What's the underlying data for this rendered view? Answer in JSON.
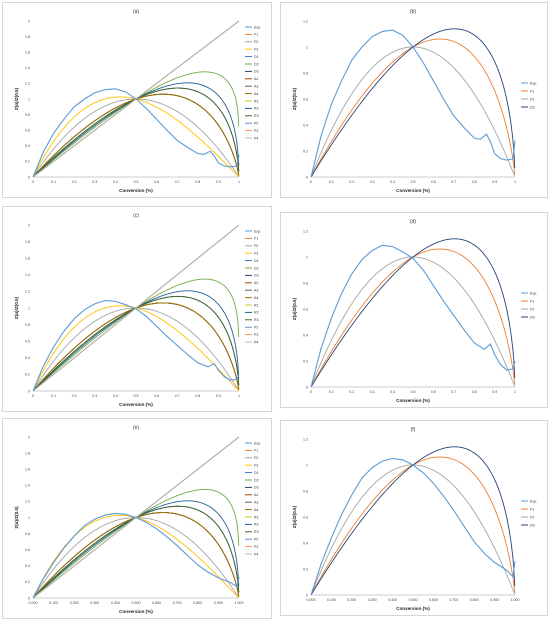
{
  "chart_data": [
    {
      "type": "line",
      "title": "(a)",
      "xlabel": "Conversion (%)",
      "ylabel": "Z(α)/Z(0.5)",
      "xlim": [
        0,
        1
      ],
      "ylim": [
        0,
        2
      ],
      "xticks": [
        "0",
        "0.1",
        "0.2",
        "0.3",
        "0.4",
        "0.5",
        "0.6",
        "0.7",
        "0.8",
        "0.9",
        "1"
      ],
      "yticks": [
        "0",
        "0.2",
        "0.4",
        "0.6",
        "0.8",
        "1",
        "1.2",
        "1.4",
        "1.6",
        "1.8",
        "2"
      ],
      "legend_position": "right",
      "series": [
        {
          "name": "Exp.",
          "color": "#5b9bd5",
          "model": "exp1"
        },
        {
          "name": "F1",
          "color": "#ed7d31",
          "model": "F1"
        },
        {
          "name": "F2",
          "color": "#a5a5a5",
          "model": "F2"
        },
        {
          "name": "F3",
          "color": "#ffc000",
          "model": "F3"
        },
        {
          "name": "D1",
          "color": "#4472c4",
          "model": "D1"
        },
        {
          "name": "D2",
          "color": "#70ad47",
          "model": "D2"
        },
        {
          "name": "D3",
          "color": "#264478",
          "model": "D3"
        },
        {
          "name": "A2",
          "color": "#9e480e",
          "model": "A2"
        },
        {
          "name": "A3",
          "color": "#636363",
          "model": "A3"
        },
        {
          "name": "A4",
          "color": "#997300",
          "model": "A4"
        },
        {
          "name": "R1",
          "color": "#d4c91e",
          "model": "R1"
        },
        {
          "name": "R2",
          "color": "#255e91",
          "model": "R2"
        },
        {
          "name": "R3",
          "color": "#43682b",
          "model": "R3"
        },
        {
          "name": "P2",
          "color": "#698ed0",
          "model": "P2"
        },
        {
          "name": "P3",
          "color": "#f1975a",
          "model": "P3"
        },
        {
          "name": "P4",
          "color": "#b7b7b7",
          "model": "P4"
        }
      ]
    },
    {
      "type": "line",
      "title": "(b)",
      "xlabel": "Conversion (%)",
      "ylabel": "Z(α)/Z(0.5)",
      "xlim": [
        0,
        1
      ],
      "ylim": [
        0,
        1.2
      ],
      "xticks": [
        "0",
        "0.1",
        "0.2",
        "0.3",
        "0.4",
        "0.5",
        "0.6",
        "0.7",
        "0.8",
        "0.9",
        "1"
      ],
      "yticks": [
        "0",
        "0.2",
        "0.4",
        "0.6",
        "0.8",
        "1",
        "1.2"
      ],
      "legend_position": "right",
      "series": [
        {
          "name": "Exp.",
          "color": "#5b9bd5",
          "model": "exp1"
        },
        {
          "name": "F1",
          "color": "#ed7d31",
          "model": "F1"
        },
        {
          "name": "F2",
          "color": "#a5a5a5",
          "model": "F2"
        },
        {
          "name": "D3",
          "color": "#264478",
          "model": "D3"
        }
      ]
    },
    {
      "type": "line",
      "title": "(c)",
      "xlabel": "Conversion (%)",
      "ylabel": "Z(α)/Z(0.5)",
      "xlim": [
        0,
        1
      ],
      "ylim": [
        0,
        2
      ],
      "xticks": [
        "0",
        "0.1",
        "0.2",
        "0.3",
        "0.4",
        "0.5",
        "0.6",
        "0.7",
        "0.8",
        "0.9",
        "1"
      ],
      "yticks": [
        "0",
        "0.2",
        "0.4",
        "0.6",
        "0.8",
        "1",
        "1.2",
        "1.4",
        "1.6",
        "1.8",
        "2"
      ],
      "legend_position": "right",
      "series": [
        {
          "name": "Exp.",
          "color": "#5b9bd5",
          "model": "exp2"
        },
        {
          "name": "F1",
          "color": "#ed7d31",
          "model": "F1"
        },
        {
          "name": "F2",
          "color": "#a5a5a5",
          "model": "F2"
        },
        {
          "name": "F3",
          "color": "#ffc000",
          "model": "F3"
        },
        {
          "name": "D1",
          "color": "#4472c4",
          "model": "D1"
        },
        {
          "name": "D2",
          "color": "#70ad47",
          "model": "D2"
        },
        {
          "name": "D3",
          "color": "#264478",
          "model": "D3"
        },
        {
          "name": "A2",
          "color": "#9e480e",
          "model": "A2"
        },
        {
          "name": "A3",
          "color": "#636363",
          "model": "A3"
        },
        {
          "name": "A4",
          "color": "#997300",
          "model": "A4"
        },
        {
          "name": "R1",
          "color": "#d4c91e",
          "model": "R1"
        },
        {
          "name": "R2",
          "color": "#255e91",
          "model": "R2"
        },
        {
          "name": "R3",
          "color": "#43682b",
          "model": "R3"
        },
        {
          "name": "P2",
          "color": "#698ed0",
          "model": "P2"
        },
        {
          "name": "P3",
          "color": "#f1975a",
          "model": "P3"
        },
        {
          "name": "P4",
          "color": "#b7b7b7",
          "model": "P4"
        }
      ]
    },
    {
      "type": "line",
      "title": "(d)",
      "xlabel": "Conversion (%)",
      "ylabel": "Z(α)/Z(0.5)",
      "xlim": [
        0,
        1
      ],
      "ylim": [
        0,
        1.2
      ],
      "xticks": [
        "0",
        "0.1",
        "0.2",
        "0.3",
        "0.4",
        "0.5",
        "0.6",
        "0.7",
        "0.8",
        "0.9",
        "1"
      ],
      "yticks": [
        "0",
        "0.2",
        "0.4",
        "0.6",
        "0.8",
        "1",
        "1.2"
      ],
      "legend_position": "right",
      "series": [
        {
          "name": "Exp.",
          "color": "#5b9bd5",
          "model": "exp2"
        },
        {
          "name": "F1",
          "color": "#ed7d31",
          "model": "F1"
        },
        {
          "name": "F2",
          "color": "#a5a5a5",
          "model": "F2"
        },
        {
          "name": "D3",
          "color": "#264478",
          "model": "D3"
        }
      ]
    },
    {
      "type": "line",
      "title": "(e)",
      "xlabel": "Conversion (%)",
      "ylabel": "Z(α)/Z(0.5)",
      "xlim": [
        0,
        1
      ],
      "ylim": [
        0,
        2
      ],
      "xticks": [
        "0.000",
        "0.100",
        "0.200",
        "0.300",
        "0.400",
        "0.500",
        "0.600",
        "0.700",
        "0.800",
        "0.900",
        "1.000"
      ],
      "yticks": [
        "0",
        "0.2",
        "0.4",
        "0.6",
        "0.8",
        "1",
        "1.2",
        "1.4",
        "1.6",
        "1.8",
        "2"
      ],
      "legend_position": "right",
      "series": [
        {
          "name": "Exp.",
          "color": "#5b9bd5",
          "model": "exp3"
        },
        {
          "name": "F1",
          "color": "#ed7d31",
          "model": "F1"
        },
        {
          "name": "F2",
          "color": "#a5a5a5",
          "model": "F2"
        },
        {
          "name": "F3",
          "color": "#ffc000",
          "model": "F3"
        },
        {
          "name": "D1",
          "color": "#4472c4",
          "model": "D1"
        },
        {
          "name": "D2",
          "color": "#70ad47",
          "model": "D2"
        },
        {
          "name": "D3",
          "color": "#264478",
          "model": "D3"
        },
        {
          "name": "A2",
          "color": "#9e480e",
          "model": "A2"
        },
        {
          "name": "A3",
          "color": "#636363",
          "model": "A3"
        },
        {
          "name": "A4",
          "color": "#997300",
          "model": "A4"
        },
        {
          "name": "R1",
          "color": "#d4c91e",
          "model": "R1"
        },
        {
          "name": "R2",
          "color": "#255e91",
          "model": "R2"
        },
        {
          "name": "R3",
          "color": "#43682b",
          "model": "R3"
        },
        {
          "name": "P2",
          "color": "#698ed0",
          "model": "P2"
        },
        {
          "name": "P3",
          "color": "#f1975a",
          "model": "P3"
        },
        {
          "name": "P4",
          "color": "#b7b7b7",
          "model": "P4"
        }
      ]
    },
    {
      "type": "line",
      "title": "(f)",
      "xlabel": "Conversion (%)",
      "ylabel": "Z(α)/Z(0.5)",
      "xlim": [
        0,
        1
      ],
      "ylim": [
        0,
        1.2
      ],
      "xticks": [
        "0.000",
        "0.100",
        "0.200",
        "0.300",
        "0.400",
        "0.500",
        "0.600",
        "0.700",
        "0.800",
        "0.900",
        "1.000"
      ],
      "yticks": [
        "0",
        "0.2",
        "0.4",
        "0.6",
        "0.8",
        "1",
        "1.2"
      ],
      "legend_position": "right",
      "series": [
        {
          "name": "Exp.",
          "color": "#5b9bd5",
          "model": "exp3"
        },
        {
          "name": "F1",
          "color": "#ed7d31",
          "model": "F1"
        },
        {
          "name": "F2",
          "color": "#a5a5a5",
          "model": "F2"
        },
        {
          "name": "D3",
          "color": "#264478",
          "model": "D3"
        }
      ]
    }
  ],
  "experimental_curves": {
    "exp1": {
      "x": [
        0,
        0.05,
        0.1,
        0.15,
        0.2,
        0.25,
        0.3,
        0.35,
        0.4,
        0.45,
        0.5,
        0.55,
        0.6,
        0.65,
        0.7,
        0.75,
        0.8,
        0.83,
        0.86,
        0.88,
        0.9,
        0.93,
        0.96,
        0.99,
        1.0
      ],
      "y": [
        0,
        0.32,
        0.56,
        0.74,
        0.9,
        1.0,
        1.08,
        1.12,
        1.13,
        1.09,
        1.0,
        0.88,
        0.74,
        0.6,
        0.47,
        0.38,
        0.3,
        0.29,
        0.33,
        0.27,
        0.18,
        0.14,
        0.13,
        0.14,
        0.28
      ]
    },
    "exp2": {
      "x": [
        0,
        0.05,
        0.1,
        0.15,
        0.2,
        0.25,
        0.3,
        0.35,
        0.4,
        0.45,
        0.5,
        0.55,
        0.6,
        0.65,
        0.7,
        0.75,
        0.8,
        0.85,
        0.88,
        0.9,
        0.93,
        0.96,
        0.99,
        1.0
      ],
      "y": [
        0,
        0.3,
        0.53,
        0.72,
        0.87,
        0.98,
        1.05,
        1.09,
        1.08,
        1.04,
        0.99,
        0.9,
        0.78,
        0.66,
        0.55,
        0.44,
        0.34,
        0.29,
        0.33,
        0.25,
        0.17,
        0.13,
        0.14,
        0.2
      ]
    },
    "exp3": {
      "x": [
        0,
        0.05,
        0.1,
        0.15,
        0.2,
        0.25,
        0.3,
        0.35,
        0.4,
        0.45,
        0.5,
        0.55,
        0.6,
        0.65,
        0.7,
        0.75,
        0.8,
        0.85,
        0.9,
        0.93,
        0.96,
        0.99,
        1.0
      ],
      "y": [
        0,
        0.24,
        0.44,
        0.62,
        0.77,
        0.9,
        0.98,
        1.03,
        1.05,
        1.04,
        1.0,
        0.94,
        0.86,
        0.76,
        0.65,
        0.53,
        0.41,
        0.32,
        0.25,
        0.22,
        0.19,
        0.14,
        0.26
      ]
    }
  }
}
